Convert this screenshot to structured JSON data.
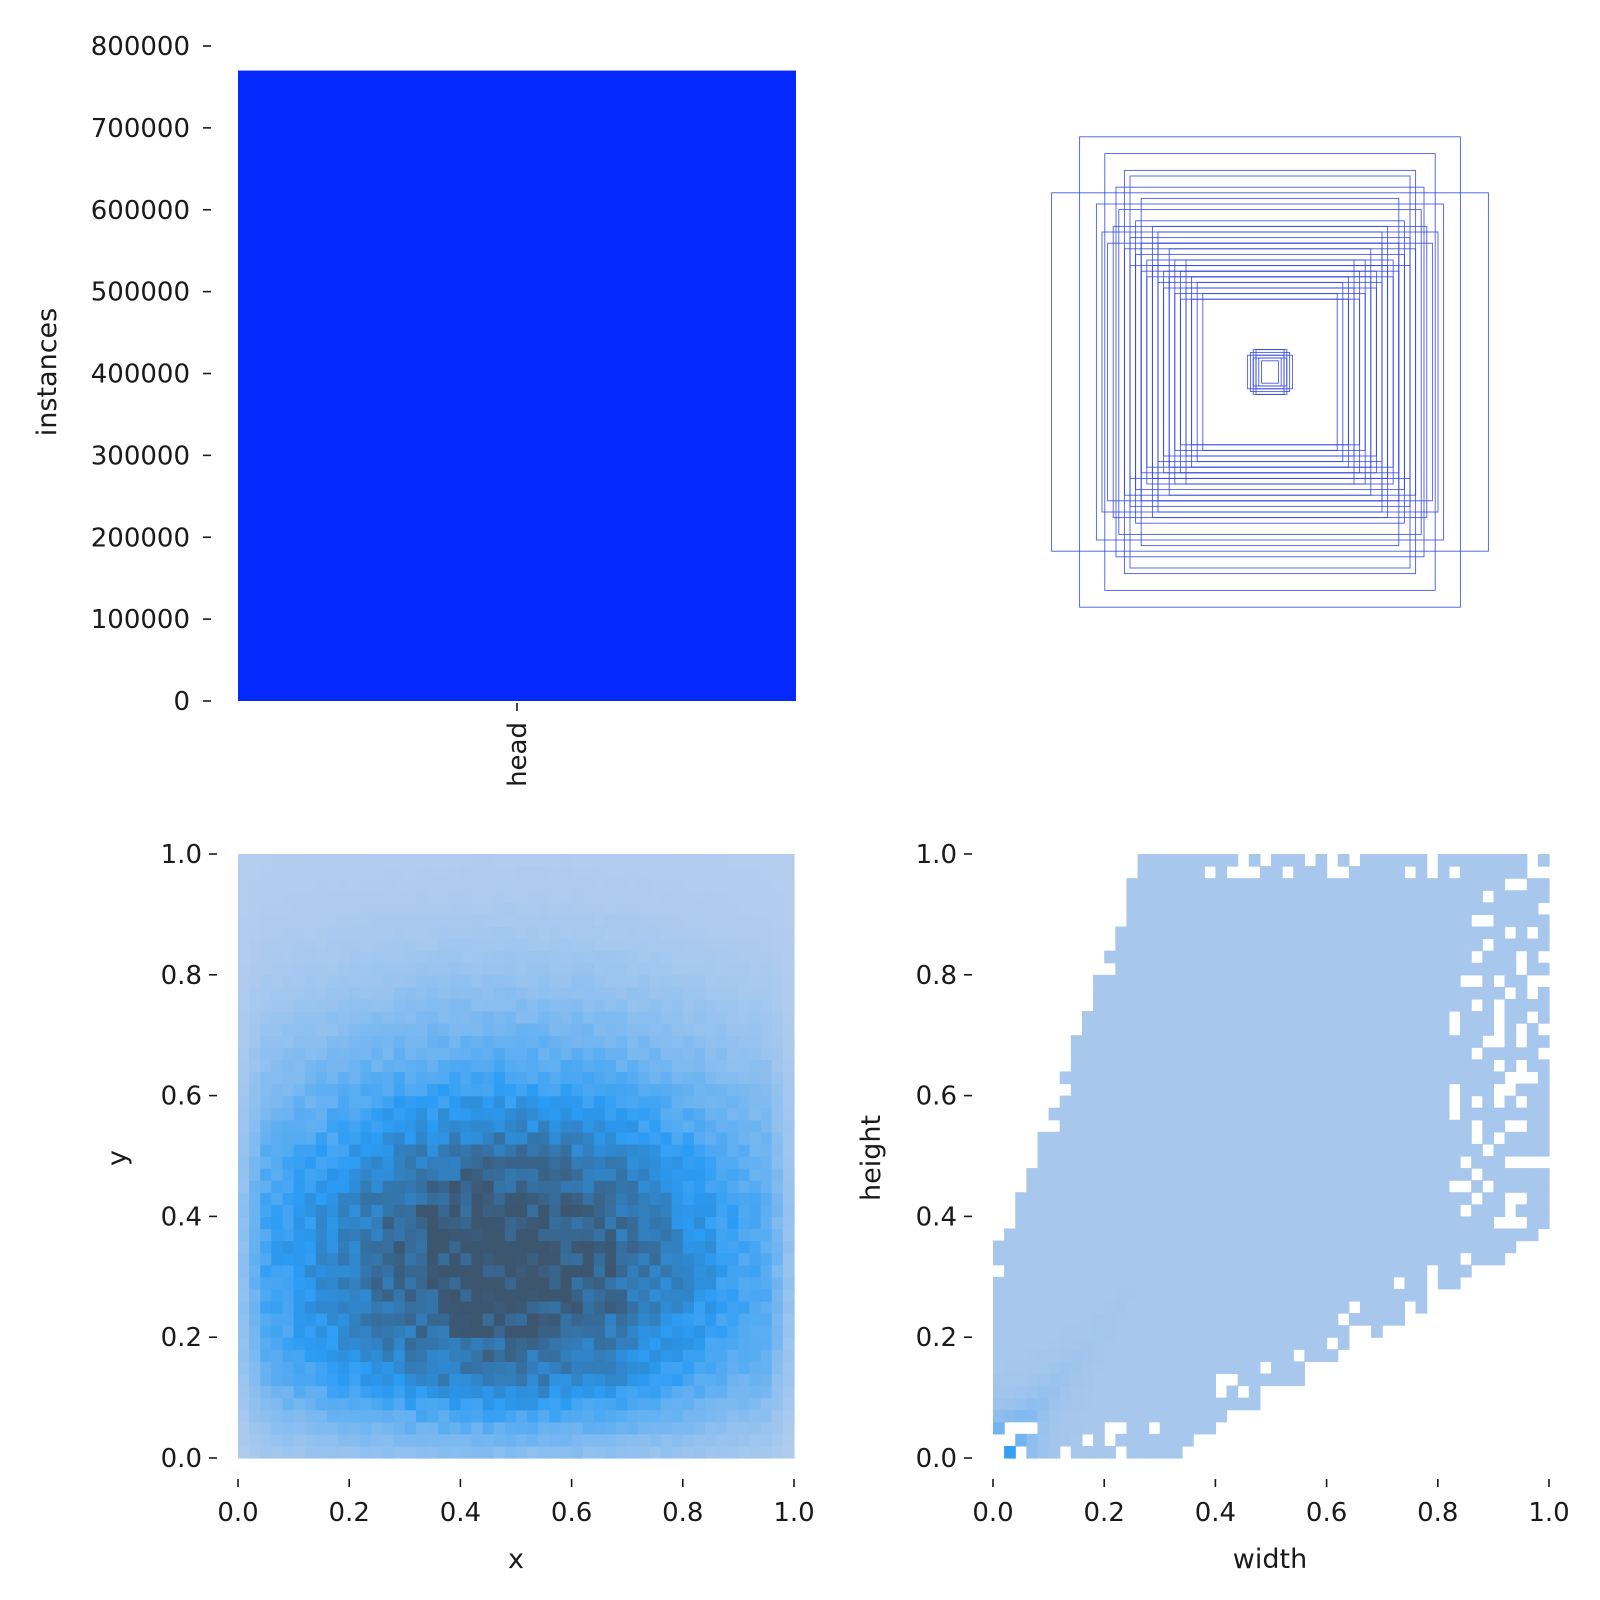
{
  "chart_data": [
    {
      "id": "labels-bar",
      "type": "bar",
      "categories": [
        "head"
      ],
      "values": [
        770000
      ],
      "ylabel": "instances",
      "xlabel": "",
      "ylim": [
        0,
        800000
      ],
      "yticks": [
        "0",
        "100000",
        "200000",
        "300000",
        "400000",
        "500000",
        "600000",
        "700000",
        "800000"
      ],
      "color": "#0528ff"
    },
    {
      "id": "box-overlay",
      "type": "diagram",
      "description_color": "#2a3ee6",
      "boxes": [
        [
          0.68,
          0.84
        ],
        [
          0.55,
          0.66
        ],
        [
          0.59,
          0.78
        ],
        [
          0.78,
          0.64
        ],
        [
          0.5,
          0.7
        ],
        [
          0.52,
          0.72
        ],
        [
          0.62,
          0.6
        ],
        [
          0.48,
          0.54
        ],
        [
          0.56,
          0.52
        ],
        [
          0.46,
          0.62
        ],
        [
          0.54,
          0.58
        ],
        [
          0.4,
          0.46
        ],
        [
          0.6,
          0.5
        ],
        [
          0.44,
          0.4
        ],
        [
          0.52,
          0.44
        ],
        [
          0.42,
          0.52
        ],
        [
          0.38,
          0.36
        ],
        [
          0.5,
          0.38
        ],
        [
          0.46,
          0.46
        ],
        [
          0.34,
          0.4
        ],
        [
          0.4,
          0.32
        ],
        [
          0.36,
          0.44
        ],
        [
          0.44,
          0.34
        ],
        [
          0.3,
          0.3
        ],
        [
          0.32,
          0.36
        ],
        [
          0.28,
          0.26
        ],
        [
          0.38,
          0.3
        ],
        [
          0.26,
          0.32
        ],
        [
          0.34,
          0.28
        ],
        [
          0.42,
          0.38
        ],
        [
          0.3,
          0.4
        ],
        [
          0.36,
          0.34
        ],
        [
          0.48,
          0.42
        ],
        [
          0.32,
          0.26
        ],
        [
          0.58,
          0.46
        ],
        [
          0.4,
          0.5
        ],
        [
          0.24,
          0.28
        ],
        [
          0.46,
          0.36
        ],
        [
          0.5,
          0.48
        ],
        [
          0.28,
          0.34
        ],
        [
          0.06,
          0.08
        ],
        [
          0.05,
          0.06
        ],
        [
          0.07,
          0.07
        ],
        [
          0.04,
          0.05
        ],
        [
          0.08,
          0.06
        ],
        [
          0.03,
          0.04
        ],
        [
          0.06,
          0.05
        ],
        [
          0.05,
          0.08
        ]
      ]
    },
    {
      "id": "xy-hist",
      "type": "heatmap",
      "xlabel": "x",
      "ylabel": "y",
      "xlim": [
        0.0,
        1.0
      ],
      "ylim": [
        0.0,
        1.0
      ],
      "xticks": [
        "0.0",
        "0.2",
        "0.4",
        "0.6",
        "0.8",
        "1.0"
      ],
      "yticks": [
        "0.0",
        "0.2",
        "0.4",
        "0.6",
        "0.8",
        "1.0"
      ],
      "bins": 50,
      "density_center": [
        0.48,
        0.33
      ],
      "colors": {
        "low": "#b3cdee",
        "mid": "#2b9cf4",
        "high": "#3c5670"
      }
    },
    {
      "id": "wh-hist",
      "type": "heatmap",
      "xlabel": "width",
      "ylabel": "height",
      "xlim": [
        0.0,
        1.0
      ],
      "ylim": [
        0.0,
        1.0
      ],
      "xticks": [
        "0.0",
        "0.2",
        "0.4",
        "0.6",
        "0.8",
        "1.0"
      ],
      "yticks": [
        "0.0",
        "0.2",
        "0.4",
        "0.6",
        "0.8",
        "1.0"
      ],
      "bins": 50,
      "colors": {
        "low": "#adc9ec",
        "mid": "#2b9cf4",
        "high": "#3c5670"
      }
    }
  ]
}
